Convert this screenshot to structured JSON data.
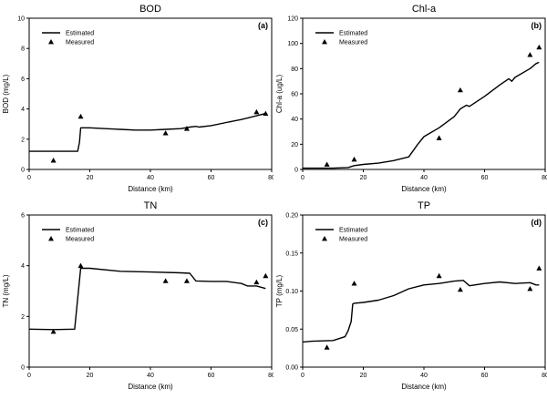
{
  "chart_data": [
    {
      "type": "line",
      "panel_label": "(a)",
      "title": "BOD",
      "xlabel": "Distance (km)",
      "ylabel": "BOD (mg/L)",
      "xlim": [
        0,
        80
      ],
      "ylim": [
        0,
        10
      ],
      "xticks": [
        "0",
        "20",
        "40",
        "60",
        "80"
      ],
      "yticks": [
        "0",
        "2",
        "4",
        "6",
        "8",
        "10"
      ],
      "legend_position": "top-left",
      "series": [
        {
          "name": "Estimated",
          "style": "line",
          "x": [
            0,
            8,
            16,
            16.6,
            17,
            20,
            25,
            30,
            35,
            40,
            45,
            50,
            53,
            55,
            56,
            60,
            65,
            70,
            75,
            78
          ],
          "y": [
            1.2,
            1.2,
            1.2,
            1.8,
            2.75,
            2.75,
            2.7,
            2.65,
            2.6,
            2.6,
            2.65,
            2.7,
            2.8,
            2.85,
            2.8,
            2.9,
            3.1,
            3.3,
            3.55,
            3.7
          ]
        },
        {
          "name": "Measured",
          "style": "marker",
          "x": [
            8,
            17,
            45,
            52,
            75,
            78
          ],
          "y": [
            0.6,
            3.5,
            2.4,
            2.7,
            3.8,
            3.7
          ]
        }
      ]
    },
    {
      "type": "line",
      "panel_label": "(b)",
      "title": "Chl-a",
      "xlabel": "Distance (km)",
      "ylabel": "Chl-a (ug/L)",
      "xlim": [
        0,
        80
      ],
      "ylim": [
        0,
        120
      ],
      "xticks": [
        "0",
        "20",
        "40",
        "60",
        "80"
      ],
      "yticks": [
        "0",
        "20",
        "40",
        "60",
        "80",
        "100",
        "120"
      ],
      "legend_position": "top-left",
      "series": [
        {
          "name": "Estimated",
          "style": "line",
          "x": [
            0,
            10,
            15,
            17,
            20,
            25,
            30,
            35,
            38,
            40,
            45,
            50,
            52,
            54,
            55,
            60,
            65,
            68,
            69,
            70,
            75,
            77,
            78
          ],
          "y": [
            1,
            1,
            1.5,
            3,
            4,
            5,
            7,
            10,
            20,
            26,
            33,
            42,
            48,
            51,
            50,
            58,
            67,
            72,
            70,
            73,
            80,
            84,
            85
          ]
        },
        {
          "name": "Measured",
          "style": "marker",
          "x": [
            8,
            17,
            45,
            52,
            75,
            78
          ],
          "y": [
            4,
            8,
            25,
            63,
            91,
            97
          ]
        }
      ]
    },
    {
      "type": "line",
      "panel_label": "(c)",
      "title": "TN",
      "xlabel": "Distance (km)",
      "ylabel": "TN (mg/L)",
      "xlim": [
        0,
        80
      ],
      "ylim": [
        0,
        6
      ],
      "xticks": [
        "0",
        "20",
        "40",
        "60",
        "80"
      ],
      "yticks": [
        "0",
        "2",
        "4",
        "6"
      ],
      "legend_position": "top-left",
      "series": [
        {
          "name": "Estimated",
          "style": "line",
          "x": [
            0,
            8,
            15,
            16,
            17,
            20,
            30,
            40,
            50,
            53,
            55,
            60,
            65,
            70,
            72,
            75,
            78
          ],
          "y": [
            1.5,
            1.48,
            1.5,
            2.7,
            3.9,
            3.9,
            3.78,
            3.75,
            3.72,
            3.7,
            3.4,
            3.38,
            3.38,
            3.3,
            3.2,
            3.2,
            3.1
          ]
        },
        {
          "name": "Measured",
          "style": "marker",
          "x": [
            8,
            17,
            45,
            52,
            75,
            78
          ],
          "y": [
            1.4,
            4.0,
            3.4,
            3.4,
            3.35,
            3.6
          ]
        }
      ]
    },
    {
      "type": "line",
      "panel_label": "(d)",
      "title": "TP",
      "xlabel": "Distance (km)",
      "ylabel": "TP (mg/L)",
      "xlim": [
        0,
        80
      ],
      "ylim": [
        0,
        0.2
      ],
      "xticks": [
        "0",
        "20",
        "40",
        "60",
        "80"
      ],
      "yticks": [
        "0.00",
        "0.05",
        "0.10",
        "0.15",
        "0.20"
      ],
      "legend_position": "top-left",
      "series": [
        {
          "name": "Estimated",
          "style": "line",
          "x": [
            0,
            3,
            10,
            14,
            15,
            16,
            16.5,
            17,
            20,
            25,
            30,
            35,
            40,
            45,
            50,
            53,
            55,
            60,
            65,
            70,
            75,
            77,
            78
          ],
          "y": [
            0.033,
            0.034,
            0.035,
            0.04,
            0.048,
            0.06,
            0.083,
            0.084,
            0.085,
            0.088,
            0.094,
            0.103,
            0.108,
            0.11,
            0.113,
            0.114,
            0.107,
            0.11,
            0.112,
            0.11,
            0.111,
            0.108,
            0.108
          ]
        },
        {
          "name": "Measured",
          "style": "marker",
          "x": [
            8,
            17,
            45,
            52,
            75,
            78
          ],
          "y": [
            0.026,
            0.11,
            0.12,
            0.102,
            0.103,
            0.13
          ]
        }
      ]
    }
  ]
}
